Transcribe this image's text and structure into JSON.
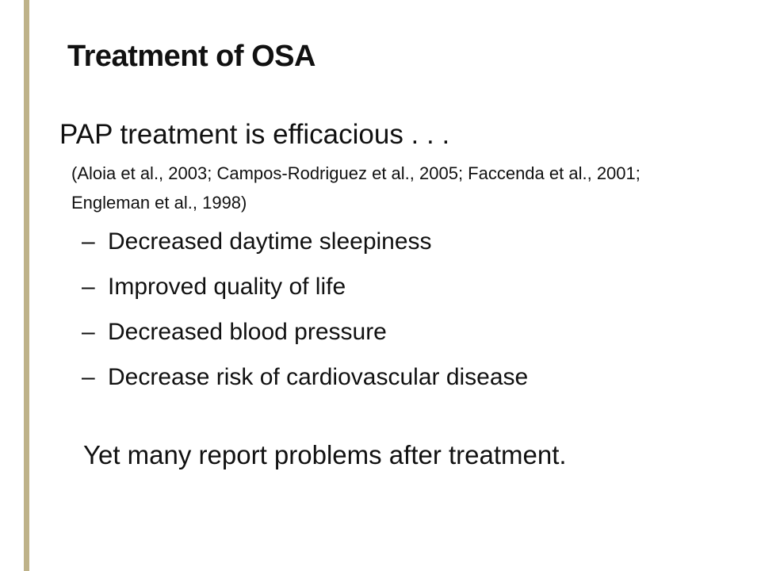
{
  "slide": {
    "title": "Treatment of OSA",
    "lead": "PAP treatment is efficacious . . .",
    "citation_lines": [
      "(Aloia et al., 2003; Campos-Rodriguez et al., 2005; Faccenda et al., 2001;",
      "Engleman et al., 1998)"
    ],
    "bullet_dash": "–",
    "bullets": [
      "Decreased daytime sleepiness",
      "Improved quality of life",
      "Decreased blood pressure",
      "Decrease risk of cardiovascular disease"
    ],
    "closing": "Yet many report problems after treatment.",
    "colors": {
      "background": "#FFFFFF",
      "text": "#111111",
      "accent_stripe": "#BEB289"
    }
  }
}
